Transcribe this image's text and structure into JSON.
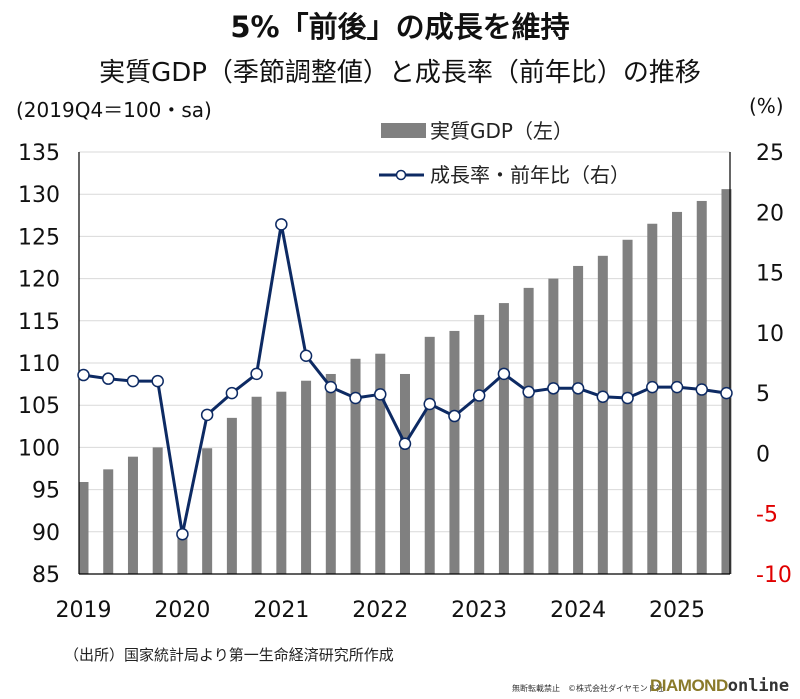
{
  "header": {
    "title": "5%「前後」の成長を維持",
    "subtitle": "実質GDP（季節調整値）と成長率（前年比）の推移",
    "left_unit": "(2019Q4＝100・sa)",
    "right_unit": "(%)"
  },
  "footer": {
    "source": "（出所）国家統計局より第一生命経済研究所作成",
    "copyright": "無断転載禁止　©株式会社ダイヤモンド社",
    "brand_diamond": "DIAMOND",
    "brand_online": "online"
  },
  "colors": {
    "bar": "#808080",
    "line": "#0d2a63",
    "negative_tick": "#e00000",
    "grid": "#d9d9d9"
  },
  "chart_data": {
    "type": "bar+line",
    "title": "5%「前後」の成長を維持",
    "subtitle": "実質GDP（季節調整値）と成長率（前年比）の推移",
    "x": [
      "2019Q1",
      "2019Q2",
      "2019Q3",
      "2019Q4",
      "2020Q1",
      "2020Q2",
      "2020Q3",
      "2020Q4",
      "2021Q1",
      "2021Q2",
      "2021Q3",
      "2021Q4",
      "2022Q1",
      "2022Q2",
      "2022Q3",
      "2022Q4",
      "2023Q1",
      "2023Q2",
      "2023Q3",
      "2023Q4",
      "2024Q1",
      "2024Q2",
      "2024Q3",
      "2024Q4",
      "2025Q1",
      "2025Q2",
      "2025Q3"
    ],
    "x_tick_labels": [
      "2019",
      "2020",
      "2021",
      "2022",
      "2023",
      "2024",
      "2025"
    ],
    "y_left": {
      "label": "(2019Q4＝100・sa)",
      "range": [
        85,
        135
      ],
      "ticks": [
        "135",
        "130",
        "125",
        "120",
        "115",
        "110",
        "105",
        "100",
        "95",
        "90",
        "85"
      ]
    },
    "y_right": {
      "label": "(%)",
      "range": [
        -10,
        25
      ],
      "ticks": [
        "25",
        "20",
        "15",
        "10",
        "5",
        "0",
        "-5",
        "-10"
      ]
    },
    "legend": {
      "position": "top-center",
      "entries": [
        "実質GDP（左）",
        "成長率・前年比（右）"
      ]
    },
    "grid": true,
    "series": [
      {
        "name": "実質GDP（左）",
        "type": "bar",
        "axis": "left",
        "values": [
          95.9,
          97.4,
          98.9,
          100.0,
          90.2,
          99.9,
          103.5,
          106.0,
          106.6,
          107.9,
          108.7,
          110.5,
          111.1,
          108.7,
          113.1,
          113.8,
          115.7,
          117.1,
          118.9,
          120.0,
          121.5,
          122.7,
          124.6,
          126.5,
          127.9,
          129.2,
          130.6
        ]
      },
      {
        "name": "成長率・前年比（右）",
        "type": "line",
        "axis": "right",
        "values": [
          6.5,
          6.2,
          6.0,
          6.0,
          -6.7,
          3.2,
          5.0,
          6.6,
          19.0,
          8.1,
          5.5,
          4.6,
          4.9,
          0.8,
          4.1,
          3.1,
          4.8,
          6.6,
          5.1,
          5.4,
          5.4,
          4.7,
          4.6,
          5.5,
          5.5,
          5.3,
          5.0
        ]
      }
    ]
  }
}
